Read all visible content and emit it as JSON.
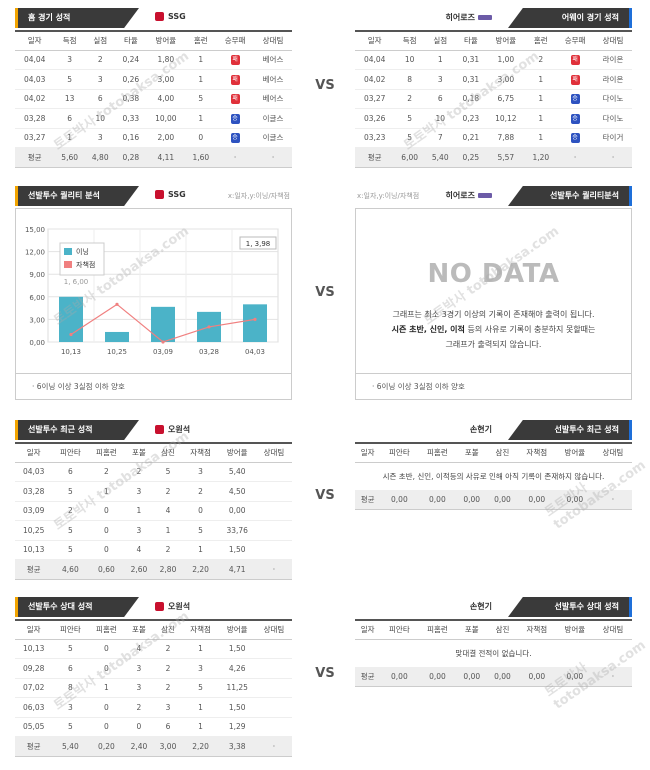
{
  "vs_label": "VS",
  "home_record": {
    "title": "홈 경기 성적",
    "team": "SSG",
    "columns": [
      "일자",
      "득점",
      "실점",
      "타율",
      "방어율",
      "홈런",
      "승무패",
      "상대팀"
    ],
    "rows": [
      [
        "04,04",
        "3",
        "2",
        "0,24",
        "1,80",
        "1",
        "패",
        "베어스"
      ],
      [
        "04,03",
        "5",
        "3",
        "0,26",
        "3,00",
        "1",
        "패",
        "베어스"
      ],
      [
        "04,02",
        "13",
        "6",
        "0,38",
        "4,00",
        "5",
        "패",
        "베어스"
      ],
      [
        "03,28",
        "6",
        "10",
        "0,33",
        "10,00",
        "1",
        "승",
        "이글스"
      ],
      [
        "03,27",
        "1",
        "3",
        "0,16",
        "2,00",
        "0",
        "승",
        "이글스"
      ]
    ],
    "avg": [
      "평균",
      "5,60",
      "4,80",
      "0,28",
      "4,11",
      "1,60",
      "·",
      "·"
    ]
  },
  "away_record": {
    "title": "어웨이 경기 성적",
    "team": "히어로즈",
    "columns": [
      "일자",
      "득점",
      "실점",
      "타율",
      "방어율",
      "홈런",
      "승무패",
      "상대팀"
    ],
    "rows": [
      [
        "04,04",
        "10",
        "1",
        "0,31",
        "1,00",
        "2",
        "패",
        "라이온"
      ],
      [
        "04,02",
        "8",
        "3",
        "0,31",
        "3,00",
        "1",
        "패",
        "라이온"
      ],
      [
        "03,27",
        "2",
        "6",
        "0,18",
        "6,75",
        "1",
        "승",
        "다이노"
      ],
      [
        "03,26",
        "5",
        "10",
        "0,23",
        "10,12",
        "1",
        "승",
        "다이노"
      ],
      [
        "03,23",
        "5",
        "7",
        "0,21",
        "7,88",
        "1",
        "승",
        "타이거"
      ]
    ],
    "avg": [
      "평균",
      "6,00",
      "5,40",
      "0,25",
      "5,57",
      "1,20",
      "·",
      "·"
    ]
  },
  "quality_left": {
    "title": "선발투수 퀄리티 분석",
    "team": "SSG",
    "note": "x:일자,y:이닝/자책점",
    "footer": "6이닝 이상 3실점 이하 양호"
  },
  "quality_right": {
    "title": "선발투수 퀄리티분석",
    "team": "히어로즈",
    "note": "x:일자,y:이닝/자책점",
    "nodata": "NO DATA",
    "line1": "그래프는 최소 3경기 이상의 기록이 존재해야 출력이 됩니다.",
    "line2_bold": "시즌 초반, 신인, 이적",
    "line2_rest": "등의 사유로 기록이 충분하지 못할때는",
    "line3": "그래프가 출력되지 않습니다.",
    "footer": "6이닝 이상 3실점 이하 양호"
  },
  "chart_data": {
    "type": "bar",
    "categories": [
      "10,13",
      "10,25",
      "03,09",
      "03,28",
      "04,03"
    ],
    "series": [
      {
        "name": "이닝",
        "values": [
          6.0,
          1.333,
          4.667,
          4.0,
          5.0
        ],
        "color": "#4bb3c8"
      },
      {
        "name": "자책점",
        "values": [
          1,
          5,
          0,
          2,
          3
        ],
        "color": "#f08080"
      }
    ],
    "ylim": [
      0,
      15
    ],
    "yticks": [
      "0,00",
      "3,00",
      "6,00",
      "9,00",
      "12,00",
      "15,00"
    ],
    "annotations": [
      "1, 3,98",
      "1, 6,00"
    ],
    "legend": "top-left",
    "grid": true
  },
  "recent_left": {
    "title": "선발투수 최근 성적",
    "team": "오원석",
    "columns": [
      "일자",
      "피안타",
      "피홈런",
      "포볼",
      "삼진",
      "자책점",
      "방어율",
      "상대팀"
    ],
    "rows": [
      [
        "04,03",
        "6",
        "2",
        "2",
        "5",
        "3",
        "5,40",
        ""
      ],
      [
        "03,28",
        "5",
        "1",
        "3",
        "2",
        "2",
        "4,50",
        ""
      ],
      [
        "03,09",
        "2",
        "0",
        "1",
        "4",
        "0",
        "0,00",
        ""
      ],
      [
        "10,25",
        "5",
        "0",
        "3",
        "1",
        "5",
        "33,76",
        ""
      ],
      [
        "10,13",
        "5",
        "0",
        "4",
        "2",
        "1",
        "1,50",
        ""
      ]
    ],
    "avg": [
      "평균",
      "4,60",
      "0,60",
      "2,60",
      "2,80",
      "2,20",
      "4,71",
      "·"
    ]
  },
  "recent_right": {
    "title": "선발투수 최근 성적",
    "team": "손현기",
    "columns": [
      "일자",
      "피안타",
      "피홈런",
      "포볼",
      "삼진",
      "자책점",
      "방어율",
      "상대팀"
    ],
    "message": "시즌 초반, 신인, 이적등의 사유로 인해 아직 기록이 존재하지 않습니다.",
    "avg": [
      "평균",
      "0,00",
      "0,00",
      "0,00",
      "0,00",
      "0,00",
      "0,00",
      "·"
    ]
  },
  "relative_left": {
    "title": "선발투수 상대 성적",
    "team": "오원석",
    "columns": [
      "일자",
      "피안타",
      "피홈런",
      "포볼",
      "삼진",
      "자책점",
      "방어율",
      "상대팀"
    ],
    "rows": [
      [
        "10,13",
        "5",
        "0",
        "4",
        "2",
        "1",
        "1,50",
        ""
      ],
      [
        "09,28",
        "6",
        "0",
        "3",
        "2",
        "3",
        "4,26",
        ""
      ],
      [
        "07,02",
        "8",
        "1",
        "3",
        "2",
        "5",
        "11,25",
        ""
      ],
      [
        "06,03",
        "3",
        "0",
        "2",
        "3",
        "1",
        "1,50",
        ""
      ],
      [
        "05,05",
        "5",
        "0",
        "0",
        "6",
        "1",
        "1,29",
        ""
      ]
    ],
    "avg": [
      "평균",
      "5,40",
      "0,20",
      "2,40",
      "3,00",
      "2,20",
      "3,38",
      "·"
    ]
  },
  "relative_right": {
    "title": "선발투수 상대 성적",
    "team": "손현기",
    "columns": [
      "일자",
      "피안타",
      "피홈런",
      "포볼",
      "삼진",
      "자책점",
      "방어율",
      "상대팀"
    ],
    "message": "맞대결 전적이 없습니다.",
    "avg": [
      "평균",
      "0,00",
      "0,00",
      "0,00",
      "0,00",
      "0,00",
      "0,00",
      "·"
    ]
  },
  "watermark": "토토박사 totobaksa.com"
}
